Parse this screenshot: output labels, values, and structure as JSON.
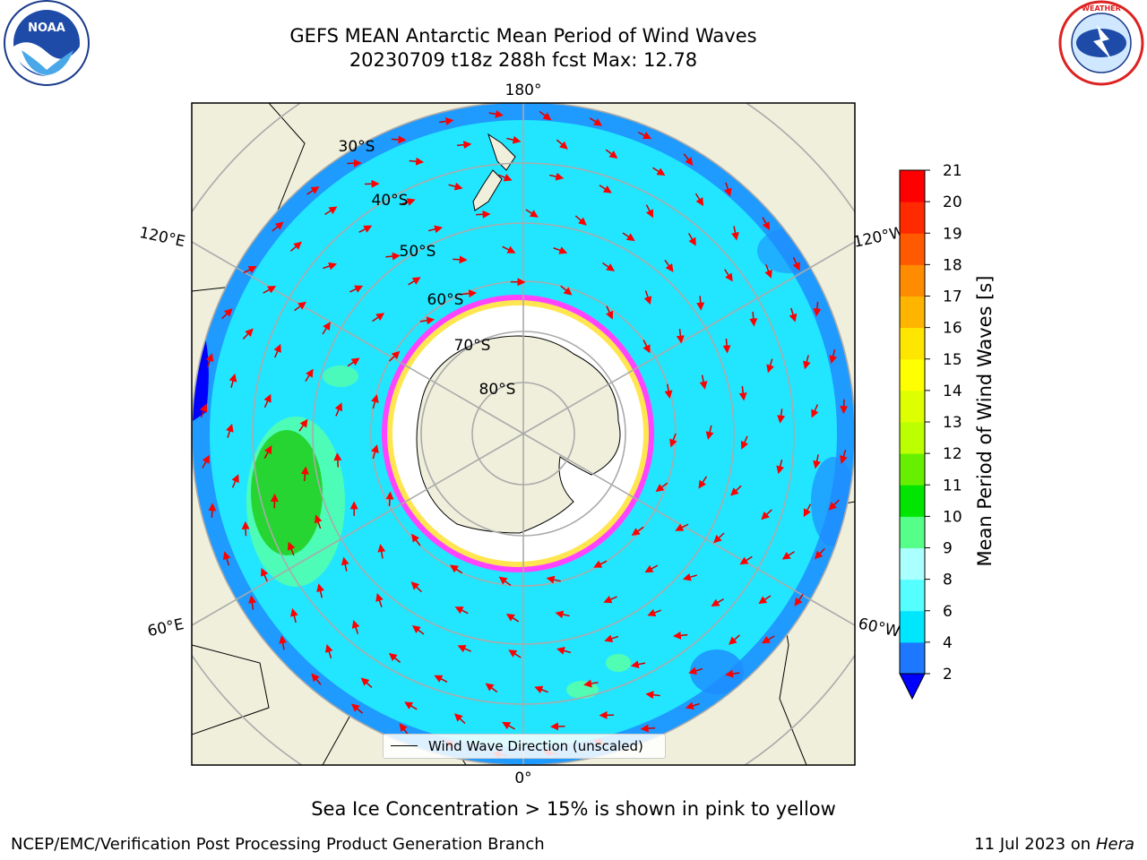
{
  "title_line1": "GEFS MEAN Antarctic Mean Period of Wind Waves",
  "title_line2": "20230709 t18z 288h fcst   Max: 12.78",
  "logos": {
    "left": "noaa-logo",
    "right": "nws-logo"
  },
  "map": {
    "longitude_labels": [
      "180°",
      "120°E",
      "120°W",
      "60°E",
      "60°W",
      "0°"
    ],
    "latitude_labels": [
      "30°S",
      "40°S",
      "50°S",
      "60°S",
      "70°S",
      "80°S"
    ],
    "colors": {
      "land": "#efefdc",
      "ocean_cyan": "#22e6ff",
      "ocean_blue": "#1e8cff",
      "deep_blue": "#0000ff",
      "green": "#22d022",
      "ice_pink": "#ff44ff",
      "ice_yellow": "#ffff33",
      "arrow": "#ff0000"
    }
  },
  "legend": {
    "label": "Wind Wave Direction (unscaled)"
  },
  "colorbar": {
    "label": "Mean Period of Wind Waves [s]",
    "ticks": [
      "2",
      "4",
      "6",
      "8",
      "9",
      "10",
      "11",
      "12",
      "13",
      "14",
      "15",
      "16",
      "17",
      "18",
      "19",
      "20",
      "21"
    ],
    "colors": [
      "#0000ff",
      "#1e78ff",
      "#00e6ff",
      "#55ffff",
      "#aaffff",
      "#55ff88",
      "#00e600",
      "#66f000",
      "#bbff00",
      "#ddff00",
      "#ffff00",
      "#ffe600",
      "#ffb400",
      "#ff8c00",
      "#ff5a00",
      "#ff2a00",
      "#ff0000"
    ]
  },
  "note": "Sea Ice Concentration > 15% is shown in pink to yellow",
  "footer_left": "NCEP/EMC/Verification Post Processing Product Generation Branch",
  "footer_date": "11 Jul 2023 on ",
  "footer_machine": "Hera"
}
